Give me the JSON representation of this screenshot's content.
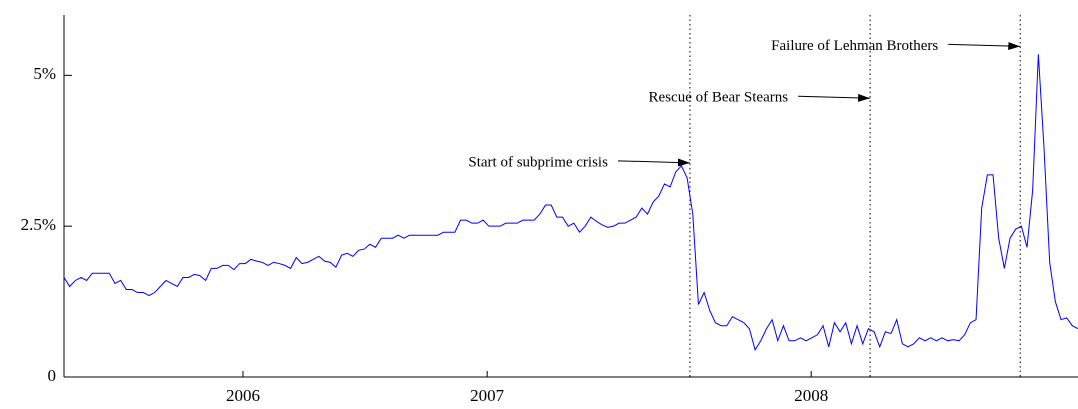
{
  "chart_data": {
    "type": "line",
    "values": [
      1.65,
      1.5,
      1.6,
      1.65,
      1.6,
      1.72,
      1.72,
      1.72,
      1.72,
      1.55,
      1.6,
      1.45,
      1.45,
      1.4,
      1.4,
      1.35,
      1.4,
      1.5,
      1.6,
      1.55,
      1.5,
      1.65,
      1.65,
      1.7,
      1.68,
      1.6,
      1.8,
      1.8,
      1.85,
      1.85,
      1.78,
      1.88,
      1.88,
      1.95,
      1.92,
      1.9,
      1.85,
      1.9,
      1.88,
      1.85,
      1.8,
      1.98,
      1.88,
      1.9,
      1.95,
      2.0,
      1.92,
      1.9,
      1.82,
      2.02,
      2.05,
      2.0,
      2.1,
      2.12,
      2.2,
      2.15,
      2.3,
      2.3,
      2.3,
      2.35,
      2.3,
      2.35,
      2.35,
      2.35,
      2.35,
      2.35,
      2.35,
      2.4,
      2.4,
      2.4,
      2.6,
      2.6,
      2.55,
      2.55,
      2.6,
      2.5,
      2.5,
      2.5,
      2.55,
      2.55,
      2.55,
      2.6,
      2.6,
      2.6,
      2.7,
      2.85,
      2.85,
      2.65,
      2.65,
      2.5,
      2.55,
      2.4,
      2.5,
      2.65,
      2.58,
      2.52,
      2.48,
      2.5,
      2.55,
      2.55,
      2.6,
      2.65,
      2.8,
      2.7,
      2.9,
      3.0,
      3.2,
      3.15,
      3.4,
      3.5,
      3.3,
      2.7,
      1.2,
      1.4,
      1.1,
      0.9,
      0.85,
      0.85,
      1.0,
      0.95,
      0.9,
      0.8,
      0.45,
      0.6,
      0.8,
      0.95,
      0.6,
      0.85,
      0.6,
      0.6,
      0.65,
      0.6,
      0.65,
      0.7,
      0.85,
      0.5,
      0.9,
      0.75,
      0.9,
      0.55,
      0.85,
      0.55,
      0.8,
      0.75,
      0.5,
      0.75,
      0.72,
      0.95,
      0.55,
      0.5,
      0.55,
      0.65,
      0.6,
      0.65,
      0.6,
      0.65,
      0.6,
      0.62,
      0.6,
      0.7,
      0.9,
      0.95,
      2.8,
      3.35,
      3.35,
      2.3,
      1.8,
      2.3,
      2.45,
      2.5,
      2.15,
      3.1,
      5.35,
      3.8,
      1.9,
      1.25,
      0.95,
      0.98,
      0.85,
      0.8
    ],
    "color": "#0000ff",
    "xlim": [
      0,
      179
    ],
    "xticks": [
      {
        "value": 31.6,
        "label": "2006"
      },
      {
        "value": 74.7,
        "label": "2007"
      },
      {
        "value": 131.9,
        "label": "2008"
      }
    ],
    "ylim": [
      0,
      6
    ],
    "yticks": [
      {
        "value": 0,
        "label": "0"
      },
      {
        "value": 2.5,
        "label": "2.5%"
      },
      {
        "value": 5,
        "label": "5%"
      }
    ],
    "annotations": [
      {
        "text": "Start of subprime crisis",
        "x": 110.5,
        "y": 3.55
      },
      {
        "text": "Rescue of Bear Stearns",
        "x": 142.3,
        "y": 4.62
      },
      {
        "text": "Failure of Lehman Brothers",
        "x": 168.8,
        "y": 5.48
      }
    ]
  }
}
